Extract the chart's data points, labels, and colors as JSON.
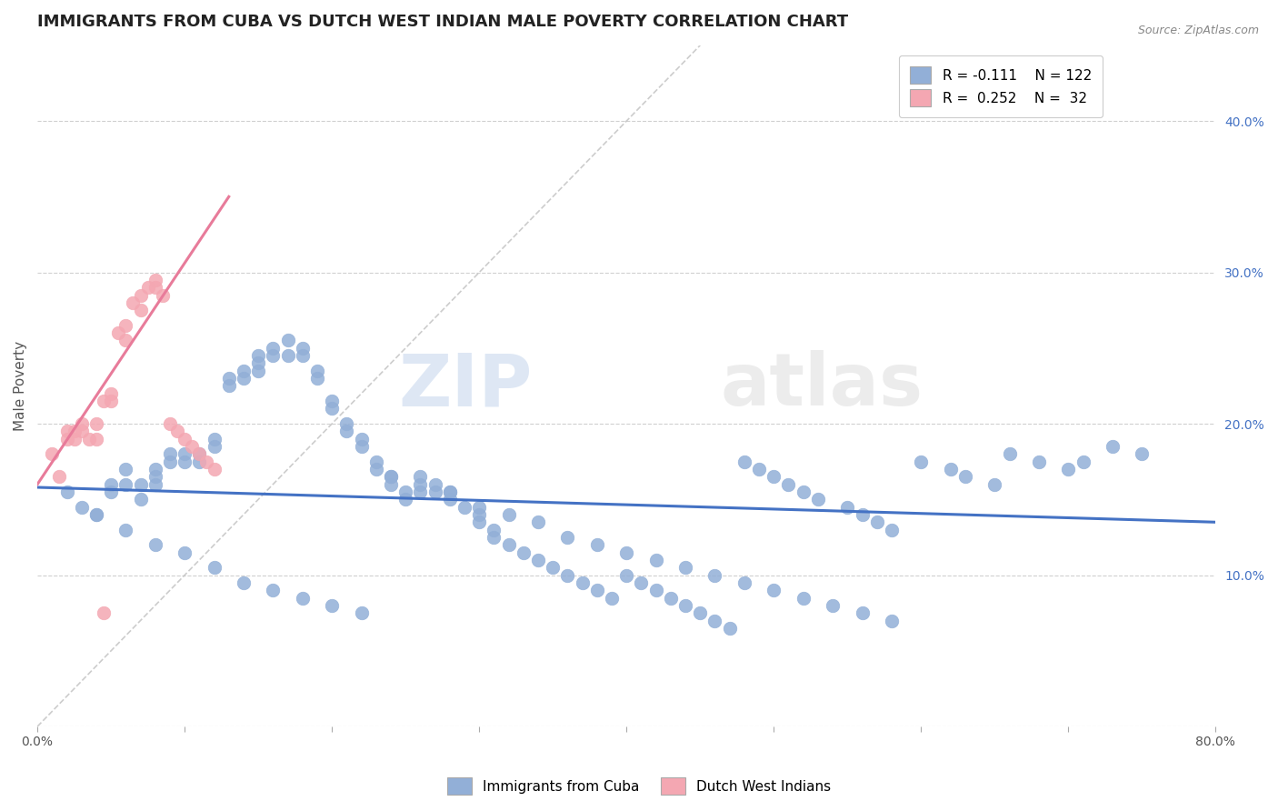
{
  "title": "IMMIGRANTS FROM CUBA VS DUTCH WEST INDIAN MALE POVERTY CORRELATION CHART",
  "source": "Source: ZipAtlas.com",
  "ylabel": "Male Poverty",
  "xlim": [
    0.0,
    0.8
  ],
  "ylim": [
    0.0,
    0.45
  ],
  "xticks": [
    0.0,
    0.1,
    0.2,
    0.3,
    0.4,
    0.5,
    0.6,
    0.7,
    0.8
  ],
  "yticks": [
    0.0,
    0.1,
    0.2,
    0.3,
    0.4
  ],
  "legend_r1": "R = -0.111",
  "legend_n1": "N = 122",
  "legend_r2": "R =  0.252",
  "legend_n2": "N =  32",
  "blue_color": "#92afd7",
  "pink_color": "#f4a7b2",
  "blue_line_color": "#4472c4",
  "pink_line_color": "#e87b9a",
  "ref_line_color": "#c0c0c0",
  "watermark_zip": "ZIP",
  "watermark_atlas": "atlas",
  "title_fontsize": 13,
  "axis_label_fontsize": 11,
  "tick_fontsize": 10,
  "blue_scatter_x": [
    0.02,
    0.03,
    0.04,
    0.05,
    0.05,
    0.06,
    0.06,
    0.07,
    0.07,
    0.08,
    0.08,
    0.08,
    0.09,
    0.09,
    0.1,
    0.1,
    0.11,
    0.11,
    0.12,
    0.12,
    0.13,
    0.13,
    0.14,
    0.14,
    0.15,
    0.15,
    0.15,
    0.16,
    0.16,
    0.17,
    0.17,
    0.18,
    0.18,
    0.19,
    0.19,
    0.2,
    0.2,
    0.21,
    0.21,
    0.22,
    0.22,
    0.23,
    0.23,
    0.24,
    0.24,
    0.25,
    0.25,
    0.26,
    0.26,
    0.27,
    0.27,
    0.28,
    0.28,
    0.29,
    0.3,
    0.3,
    0.31,
    0.31,
    0.32,
    0.33,
    0.34,
    0.35,
    0.36,
    0.37,
    0.38,
    0.39,
    0.4,
    0.41,
    0.42,
    0.43,
    0.44,
    0.45,
    0.46,
    0.47,
    0.48,
    0.49,
    0.5,
    0.51,
    0.52,
    0.53,
    0.55,
    0.56,
    0.57,
    0.58,
    0.6,
    0.62,
    0.63,
    0.65,
    0.66,
    0.68,
    0.7,
    0.71,
    0.73,
    0.75,
    0.04,
    0.06,
    0.08,
    0.1,
    0.12,
    0.14,
    0.16,
    0.18,
    0.2,
    0.22,
    0.24,
    0.26,
    0.28,
    0.3,
    0.32,
    0.34,
    0.36,
    0.38,
    0.4,
    0.42,
    0.44,
    0.46,
    0.48,
    0.5,
    0.52,
    0.54,
    0.56,
    0.58
  ],
  "blue_scatter_y": [
    0.155,
    0.145,
    0.14,
    0.155,
    0.16,
    0.17,
    0.16,
    0.16,
    0.15,
    0.17,
    0.165,
    0.16,
    0.18,
    0.175,
    0.18,
    0.175,
    0.18,
    0.175,
    0.19,
    0.185,
    0.23,
    0.225,
    0.235,
    0.23,
    0.245,
    0.24,
    0.235,
    0.25,
    0.245,
    0.255,
    0.245,
    0.25,
    0.245,
    0.235,
    0.23,
    0.215,
    0.21,
    0.2,
    0.195,
    0.19,
    0.185,
    0.175,
    0.17,
    0.165,
    0.16,
    0.155,
    0.15,
    0.165,
    0.16,
    0.16,
    0.155,
    0.155,
    0.15,
    0.145,
    0.14,
    0.135,
    0.13,
    0.125,
    0.12,
    0.115,
    0.11,
    0.105,
    0.1,
    0.095,
    0.09,
    0.085,
    0.1,
    0.095,
    0.09,
    0.085,
    0.08,
    0.075,
    0.07,
    0.065,
    0.175,
    0.17,
    0.165,
    0.16,
    0.155,
    0.15,
    0.145,
    0.14,
    0.135,
    0.13,
    0.175,
    0.17,
    0.165,
    0.16,
    0.18,
    0.175,
    0.17,
    0.175,
    0.185,
    0.18,
    0.14,
    0.13,
    0.12,
    0.115,
    0.105,
    0.095,
    0.09,
    0.085,
    0.08,
    0.075,
    0.165,
    0.155,
    0.155,
    0.145,
    0.14,
    0.135,
    0.125,
    0.12,
    0.115,
    0.11,
    0.105,
    0.1,
    0.095,
    0.09,
    0.085,
    0.08,
    0.075,
    0.07
  ],
  "pink_scatter_x": [
    0.01,
    0.015,
    0.02,
    0.02,
    0.025,
    0.025,
    0.03,
    0.03,
    0.035,
    0.04,
    0.04,
    0.045,
    0.05,
    0.05,
    0.055,
    0.06,
    0.06,
    0.065,
    0.07,
    0.07,
    0.075,
    0.08,
    0.085,
    0.09,
    0.095,
    0.1,
    0.105,
    0.11,
    0.115,
    0.12,
    0.045,
    0.08
  ],
  "pink_scatter_y": [
    0.18,
    0.165,
    0.195,
    0.19,
    0.195,
    0.19,
    0.2,
    0.195,
    0.19,
    0.2,
    0.19,
    0.215,
    0.22,
    0.215,
    0.26,
    0.265,
    0.255,
    0.28,
    0.285,
    0.275,
    0.29,
    0.29,
    0.285,
    0.2,
    0.195,
    0.19,
    0.185,
    0.18,
    0.175,
    0.17,
    0.075,
    0.295
  ],
  "blue_trend_x": [
    0.0,
    0.8
  ],
  "blue_trend_y": [
    0.158,
    0.135
  ],
  "pink_trend_x": [
    0.0,
    0.13
  ],
  "pink_trend_y": [
    0.16,
    0.35
  ],
  "ref_line_x": [
    0.0,
    0.45
  ],
  "ref_line_y": [
    0.0,
    0.45
  ]
}
